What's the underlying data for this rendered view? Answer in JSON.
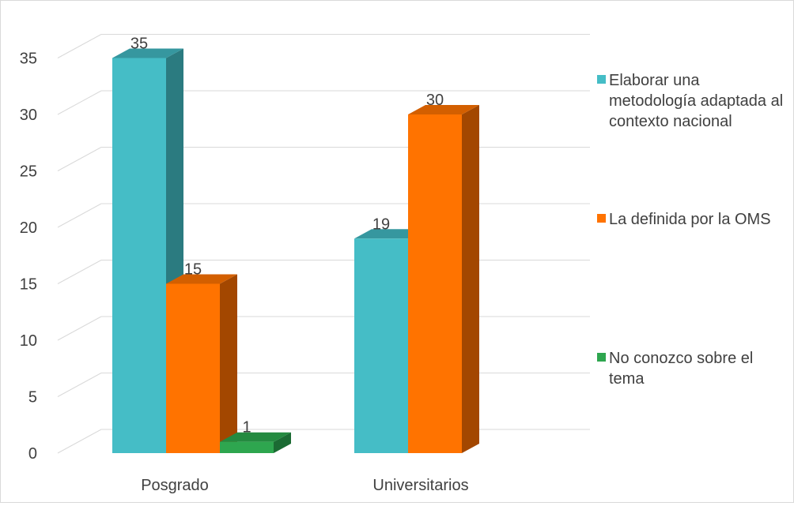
{
  "chart_data": {
    "type": "bar",
    "style": "3d-clustered-column",
    "categories": [
      "Posgrado",
      "Universitarios"
    ],
    "series": [
      {
        "name": "Elaborar una metodología adaptada al contexto nacional",
        "values": [
          35,
          19
        ],
        "color": "#45bdc6",
        "side_color": "#2b7b80",
        "top_color": "#36979f"
      },
      {
        "name": "La definida por la OMS",
        "values": [
          15,
          30
        ],
        "color": "#ff7300",
        "side_color": "#a34700",
        "top_color": "#d35f00"
      },
      {
        "name": "No conozco sobre el tema",
        "values": [
          1,
          null
        ],
        "color": "#2ea64f",
        "side_color": "#1b6b33",
        "top_color": "#248a40"
      }
    ],
    "ylim": [
      0,
      35
    ],
    "yticks": [
      0,
      5,
      10,
      15,
      20,
      25,
      30,
      35
    ],
    "grid": true,
    "legend": "right",
    "data_labels": true
  }
}
